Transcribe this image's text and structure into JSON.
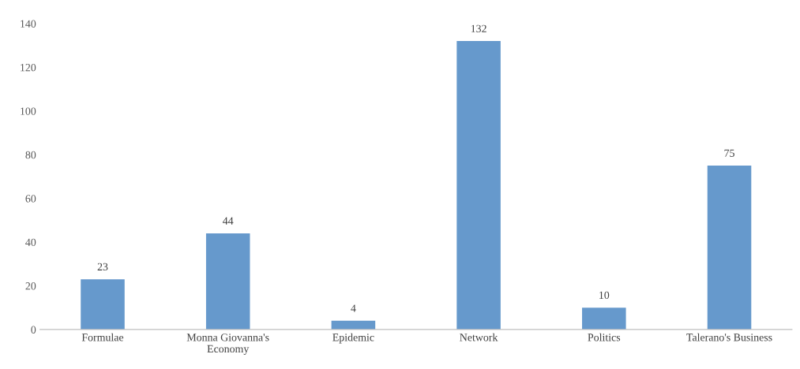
{
  "chart_data": {
    "type": "bar",
    "categories": [
      "Formulae",
      "Monna Giovanna's Economy",
      "Epidemic",
      "Network",
      "Politics",
      "Talerano's Business"
    ],
    "values": [
      23,
      44,
      4,
      132,
      10,
      75
    ],
    "color": "#6699cc",
    "ylim": [
      0,
      140
    ],
    "yticks": [
      0,
      20,
      40,
      60,
      80,
      100,
      120,
      140
    ],
    "data_labels": true,
    "grid": false,
    "legend": false
  }
}
